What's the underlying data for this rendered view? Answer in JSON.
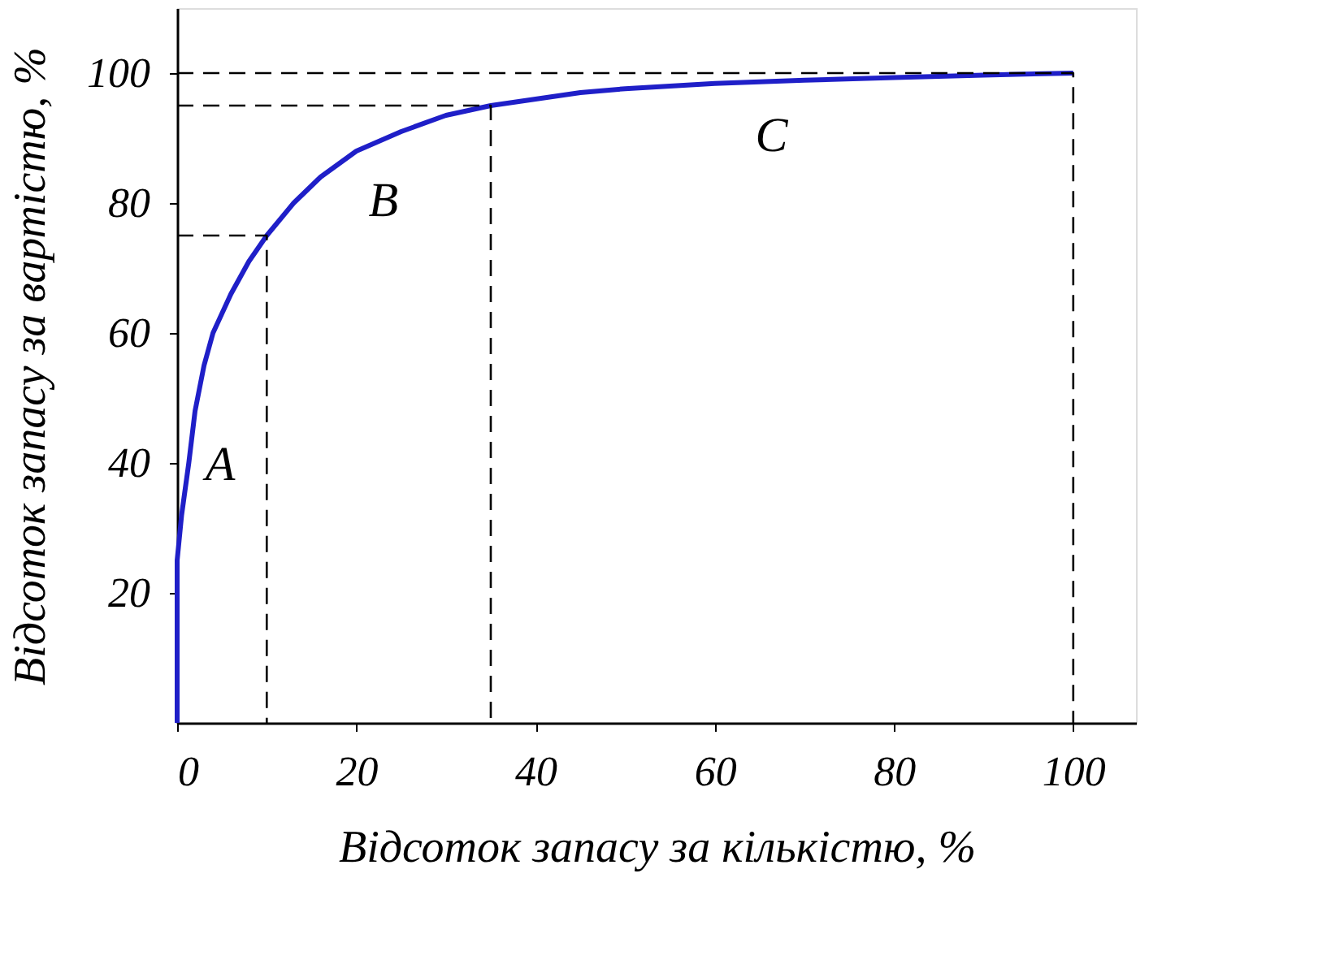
{
  "chart_data": {
    "type": "line",
    "xlabel": "Відсоток запасу за кількістю, %",
    "ylabel": "Відсоток запасу за вартістю, %",
    "xlim": [
      0,
      107
    ],
    "ylim": [
      0,
      110
    ],
    "xticks": [
      0,
      20,
      40,
      60,
      80,
      100
    ],
    "yticks": [
      20,
      40,
      60,
      80,
      100
    ],
    "grid": false,
    "marker": "none",
    "series": [
      {
        "color": "#1f1fc8",
        "line_style": "solid",
        "x": [
          0,
          0,
          0.5,
          1.3,
          2,
          3,
          4,
          6,
          8,
          10,
          13,
          16,
          20,
          25,
          30,
          35,
          40,
          45,
          50,
          60,
          70,
          80,
          90,
          100
        ],
        "values": [
          0,
          25,
          32,
          40,
          48,
          55,
          60,
          66,
          71,
          75,
          80,
          84,
          88,
          91,
          93.5,
          95,
          96,
          97,
          97.6,
          98.4,
          98.9,
          99.3,
          99.7,
          100
        ]
      },
      {
        "color": "#000000",
        "line_style": "dashed",
        "x": [
          0,
          10,
          10
        ],
        "values": [
          75,
          75,
          0
        ]
      },
      {
        "color": "#000000",
        "line_style": "dashed",
        "x": [
          0,
          35,
          35
        ],
        "values": [
          95,
          95,
          0
        ]
      },
      {
        "color": "#000000",
        "line_style": "dashed",
        "x": [
          0,
          100,
          100
        ],
        "values": [
          100,
          100,
          0
        ]
      }
    ],
    "annotations": [
      "A",
      "B",
      "C"
    ]
  }
}
